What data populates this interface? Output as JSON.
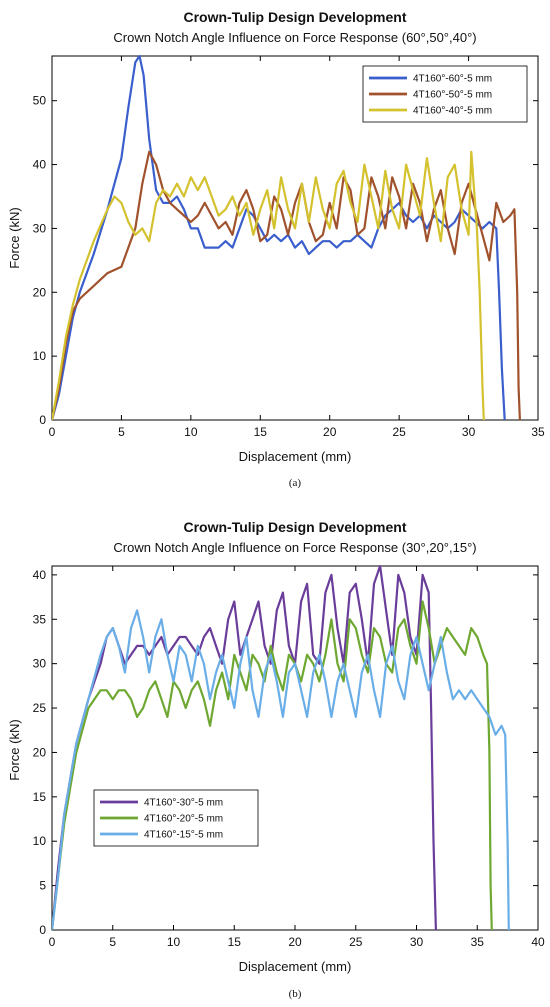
{
  "chart_data": [
    {
      "type": "line",
      "title": "Crown-Tulip Design Development",
      "subtitle": "Crown Notch Angle Influence on Force Response (60°,50°,40°)",
      "xlabel": "Displacement (mm)",
      "ylabel": "Force (kN)",
      "xlim": [
        0,
        35
      ],
      "ylim": [
        0,
        57
      ],
      "xticks": [
        0,
        5,
        10,
        15,
        20,
        25,
        30,
        35
      ],
      "yticks": [
        0,
        10,
        20,
        30,
        40,
        50
      ],
      "legend_position": "top-right",
      "caption": "(a)",
      "series": [
        {
          "name": "4T160°-60°-5 mm",
          "color": "#3a5fcd",
          "x": [
            0,
            0.5,
            1,
            1.5,
            2,
            3,
            4,
            5,
            5.5,
            6,
            6.3,
            6.6,
            7,
            7.5,
            8,
            8.5,
            9,
            9.5,
            10,
            10.5,
            11,
            11.5,
            12,
            12.5,
            13,
            13.5,
            14,
            14.5,
            15,
            15.5,
            16,
            16.5,
            17,
            17.5,
            18,
            18.5,
            19,
            19.5,
            20,
            20.5,
            21,
            21.5,
            22,
            22.5,
            23,
            23.5,
            24,
            24.5,
            25,
            25.5,
            26,
            26.5,
            27,
            27.5,
            28,
            28.5,
            29,
            29.5,
            30,
            30.5,
            31,
            31.5,
            32,
            32.2,
            32.4,
            32.6
          ],
          "y": [
            0,
            4,
            10,
            16,
            20,
            26,
            33,
            41,
            49,
            56,
            57,
            54,
            44,
            36,
            34,
            34,
            35,
            33,
            30,
            30,
            27,
            27,
            27,
            28,
            27,
            30,
            33,
            32,
            30,
            28,
            29,
            28,
            29,
            27,
            28,
            26,
            27,
            28,
            28,
            27,
            28,
            28,
            29,
            28,
            27,
            30,
            32,
            33,
            34,
            32,
            31,
            32,
            30,
            32,
            31,
            30,
            31,
            33,
            32,
            31,
            30,
            31,
            30,
            20,
            8,
            0
          ]
        },
        {
          "name": "4T160°-50°-5 mm",
          "color": "#a0522d",
          "x": [
            0,
            0.5,
            1,
            1.5,
            2,
            3,
            4,
            5,
            6,
            6.5,
            7,
            7.5,
            8,
            8.5,
            9,
            9.5,
            10,
            10.5,
            11,
            11.5,
            12,
            12.5,
            13,
            13.5,
            14,
            14.5,
            15,
            15.5,
            16,
            16.5,
            17,
            17.5,
            18,
            18.5,
            19,
            19.5,
            20,
            20.5,
            21,
            21.5,
            22,
            22.5,
            23,
            23.5,
            24,
            24.5,
            25,
            25.5,
            26,
            26.5,
            27,
            27.5,
            28,
            28.5,
            29,
            29.5,
            30,
            30.5,
            31,
            31.5,
            32,
            32.5,
            33,
            33.3,
            33.5,
            33.6,
            33.7
          ],
          "y": [
            0,
            5,
            12,
            17,
            19,
            21,
            23,
            24,
            30,
            37,
            42,
            40,
            36,
            34,
            33,
            32,
            31,
            32,
            34,
            32,
            30,
            31,
            29,
            34,
            36,
            33,
            28,
            29,
            35,
            33,
            29,
            34,
            37,
            31,
            28,
            29,
            34,
            30,
            38,
            36,
            29,
            30,
            38,
            35,
            30,
            38,
            35,
            30,
            37,
            34,
            28,
            33,
            36,
            30,
            26,
            34,
            37,
            33,
            29,
            25,
            34,
            31,
            32,
            33,
            20,
            5,
            0
          ]
        },
        {
          "name": "4T160°-40°-5 mm",
          "color": "#d4c12e",
          "x": [
            0,
            0.5,
            1,
            1.5,
            2,
            3,
            4,
            4.5,
            5,
            5.5,
            6,
            6.5,
            7,
            7.5,
            8,
            8.5,
            9,
            9.5,
            10,
            10.5,
            11,
            11.5,
            12,
            12.5,
            13,
            13.5,
            14,
            14.5,
            15,
            15.5,
            16,
            16.5,
            17,
            17.5,
            18,
            18.5,
            19,
            19.5,
            20,
            20.5,
            21,
            21.5,
            22,
            22.5,
            23,
            23.5,
            24,
            24.5,
            25,
            25.5,
            26,
            26.5,
            27,
            27.5,
            28,
            28.5,
            29,
            29.5,
            30,
            30.2,
            30.4,
            30.6,
            30.8,
            31,
            31.1
          ],
          "y": [
            0,
            6,
            13,
            18,
            22,
            28,
            33,
            35,
            34,
            31,
            29,
            30,
            28,
            34,
            36,
            35,
            37,
            35,
            38,
            36,
            38,
            35,
            32,
            33,
            35,
            32,
            34,
            29,
            33,
            36,
            30,
            38,
            33,
            30,
            37,
            31,
            38,
            33,
            30,
            37,
            39,
            34,
            31,
            40,
            35,
            30,
            39,
            33,
            30,
            40,
            36,
            32,
            41,
            34,
            28,
            38,
            40,
            33,
            29,
            42,
            36,
            30,
            20,
            5,
            0
          ]
        }
      ]
    },
    {
      "type": "line",
      "title": "Crown-Tulip Design Development",
      "subtitle": "Crown Notch Angle Influence on Force Response (30°,20°,15°)",
      "xlabel": "Displacement (mm)",
      "ylabel": "Force (kN)",
      "xlim": [
        0,
        40
      ],
      "ylim": [
        0,
        41
      ],
      "xticks": [
        0,
        5,
        10,
        15,
        20,
        25,
        30,
        35,
        40
      ],
      "yticks": [
        0,
        5,
        10,
        15,
        20,
        25,
        30,
        35,
        40
      ],
      "legend_position": "bottom-left",
      "caption": "(b)",
      "series": [
        {
          "name": "4T160°-30°-5 mm",
          "color": "#6a3d9a",
          "x": [
            0,
            0.5,
            1,
            1.5,
            2,
            3,
            4,
            4.5,
            5,
            5.5,
            6,
            6.5,
            7,
            7.5,
            8,
            8.5,
            9,
            9.5,
            10,
            10.5,
            11,
            11.5,
            12,
            12.5,
            13,
            13.5,
            14,
            14.5,
            15,
            15.5,
            16,
            16.5,
            17,
            17.5,
            18,
            18.5,
            19,
            19.5,
            20,
            20.5,
            21,
            21.5,
            22,
            22.5,
            23,
            23.5,
            24,
            24.5,
            25,
            25.5,
            26,
            26.5,
            27,
            27.5,
            28,
            28.5,
            29,
            29.5,
            30,
            30.5,
            31,
            31.2,
            31.4,
            31.6
          ],
          "y": [
            0,
            7,
            13,
            17,
            21,
            26,
            30,
            33,
            34,
            32,
            30,
            31,
            32,
            32,
            31,
            32,
            33,
            31,
            32,
            33,
            33,
            32,
            31,
            33,
            34,
            32,
            30,
            35,
            37,
            31,
            33,
            35,
            37,
            32,
            30,
            36,
            38,
            32,
            30,
            37,
            39,
            31,
            30,
            38,
            40,
            34,
            30,
            38,
            39,
            35,
            30,
            39,
            41,
            36,
            31,
            40,
            38,
            33,
            31,
            40,
            38,
            25,
            10,
            0
          ]
        },
        {
          "name": "4T160°-20°-5 mm",
          "color": "#6ea832",
          "x": [
            0,
            0.5,
            1,
            1.5,
            2,
            3,
            4,
            4.5,
            5,
            5.5,
            6,
            6.5,
            7,
            7.5,
            8,
            8.5,
            9,
            9.5,
            10,
            10.5,
            11,
            11.5,
            12,
            12.5,
            13,
            13.5,
            14,
            14.5,
            15,
            15.5,
            16,
            16.5,
            17,
            17.5,
            18,
            18.5,
            19,
            19.5,
            20,
            20.5,
            21,
            21.5,
            22,
            22.5,
            23,
            23.5,
            24,
            24.5,
            25,
            25.5,
            26,
            26.5,
            27,
            27.5,
            28,
            28.5,
            29,
            29.5,
            30,
            30.5,
            31,
            31.5,
            32,
            32.5,
            33,
            33.5,
            34,
            34.5,
            35,
            35.5,
            35.8,
            36,
            36.1,
            36.2
          ],
          "y": [
            0,
            6,
            12,
            16,
            20,
            25,
            27,
            27,
            26,
            27,
            27,
            26,
            24,
            25,
            27,
            28,
            26,
            24,
            28,
            27,
            25,
            27,
            28,
            26,
            23,
            27,
            29,
            26,
            31,
            29,
            27,
            31,
            30,
            28,
            32,
            29,
            27,
            31,
            30,
            28,
            31,
            30,
            28,
            31,
            35,
            30,
            28,
            35,
            34,
            31,
            29,
            34,
            33,
            30,
            29,
            34,
            35,
            32,
            30,
            37,
            34,
            30,
            32,
            34,
            33,
            32,
            31,
            34,
            33,
            31,
            30,
            20,
            5,
            0
          ]
        },
        {
          "name": "4T160°-15°-5 mm",
          "color": "#6aaee8",
          "x": [
            0,
            0.5,
            1,
            1.5,
            2,
            3,
            4,
            4.5,
            5,
            5.5,
            6,
            6.5,
            7,
            7.5,
            8,
            8.5,
            9,
            9.5,
            10,
            10.5,
            11,
            11.5,
            12,
            12.5,
            13,
            13.5,
            14,
            14.5,
            15,
            15.5,
            16,
            16.5,
            17,
            17.5,
            18,
            18.5,
            19,
            19.5,
            20,
            20.5,
            21,
            21.5,
            22,
            22.5,
            23,
            23.5,
            24,
            24.5,
            25,
            25.5,
            26,
            26.5,
            27,
            27.5,
            28,
            28.5,
            29,
            29.5,
            30,
            30.5,
            31,
            31.5,
            32,
            32.5,
            33,
            33.5,
            34,
            34.5,
            35,
            35.5,
            36,
            36.5,
            37,
            37.3,
            37.5,
            37.6
          ],
          "y": [
            0,
            6,
            13,
            17,
            21,
            26,
            31,
            33,
            34,
            32,
            29,
            34,
            36,
            33,
            29,
            33,
            35,
            31,
            28,
            32,
            31,
            28,
            32,
            30,
            26,
            29,
            31,
            28,
            25,
            30,
            33,
            27,
            24,
            29,
            31,
            28,
            24,
            29,
            30,
            27,
            24,
            29,
            31,
            28,
            24,
            28,
            30,
            27,
            24,
            29,
            31,
            27,
            24,
            30,
            32,
            28,
            26,
            31,
            33,
            30,
            27,
            30,
            33,
            29,
            26,
            27,
            26,
            27,
            26,
            25,
            24,
            22,
            23,
            22,
            10,
            0
          ]
        }
      ]
    }
  ]
}
